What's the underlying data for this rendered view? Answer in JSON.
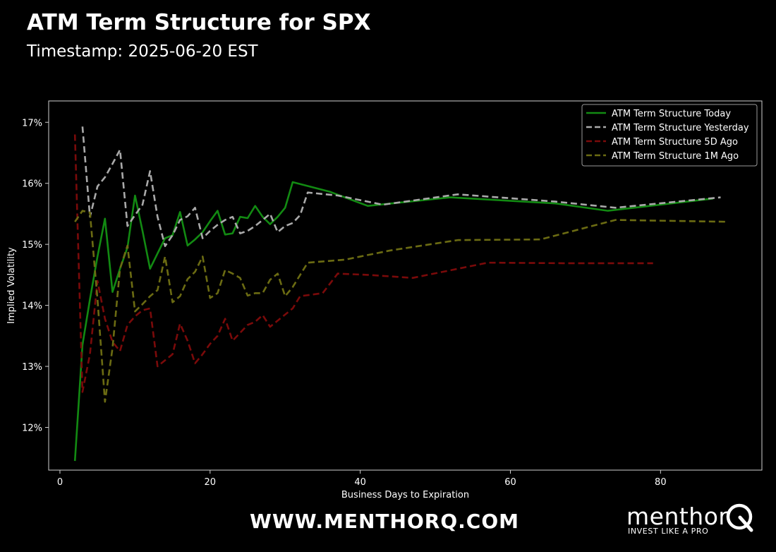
{
  "header": {
    "title": "ATM Term Structure for SPX",
    "subtitle": "Timestamp: 2025-06-20 EST"
  },
  "footer": {
    "url": "WWW.MENTHORQ.COM",
    "logo_word": "menthor",
    "logo_tagline": "INVEST LIKE A PRO"
  },
  "colors": {
    "background": "#000000",
    "today": "#128a12",
    "yesterday": "#a9a9a9",
    "five_day": "#7a0a0a",
    "one_month": "#6b6b12"
  },
  "chart_data": {
    "type": "line",
    "xlabel": "Business Days to Expiration",
    "ylabel": "Implied Volatility",
    "xlim": [
      -1.5,
      93.5
    ],
    "ylim": [
      11.3,
      17.35
    ],
    "xticks": [
      0,
      20,
      40,
      60,
      80
    ],
    "yticks": [
      12,
      13,
      14,
      15,
      16,
      17
    ],
    "ytick_suffix": "%",
    "grid": false,
    "legend_position": "top-right",
    "series": [
      {
        "name": "ATM Term Structure Today",
        "style": "solid",
        "color": "#128a12",
        "x": [
          2,
          3,
          4,
          5,
          6,
          7,
          8,
          9,
          10,
          11,
          12,
          13,
          14,
          15,
          16,
          17,
          18,
          19,
          20,
          21,
          22,
          23,
          24,
          25,
          26,
          27,
          28,
          29,
          30,
          31,
          36,
          41,
          52,
          66,
          73,
          87
        ],
        "y": [
          11.45,
          13.35,
          14.1,
          14.8,
          15.42,
          14.22,
          14.6,
          14.95,
          15.8,
          15.22,
          14.6,
          14.85,
          15.1,
          15.15,
          15.53,
          14.98,
          15.08,
          15.2,
          15.38,
          15.55,
          15.16,
          15.18,
          15.45,
          15.43,
          15.63,
          15.45,
          15.33,
          15.45,
          15.6,
          16.02,
          15.86,
          15.63,
          15.77,
          15.67,
          15.55,
          15.75
        ]
      },
      {
        "name": "ATM Term Structure Yesterday",
        "style": "dashed",
        "color": "#a9a9a9",
        "x": [
          3,
          4,
          5,
          6,
          7,
          8,
          9,
          10,
          11,
          12,
          13,
          14,
          15,
          16,
          17,
          18,
          19,
          20,
          21,
          22,
          23,
          24,
          25,
          26,
          27,
          28,
          29,
          30,
          31,
          32,
          33,
          37,
          43,
          53,
          66,
          74,
          88
        ],
        "y": [
          16.93,
          15.45,
          15.95,
          16.1,
          16.32,
          16.55,
          15.3,
          15.48,
          15.65,
          16.2,
          15.45,
          14.97,
          15.15,
          15.4,
          15.46,
          15.6,
          15.1,
          15.22,
          15.32,
          15.4,
          15.45,
          15.18,
          15.22,
          15.3,
          15.4,
          15.5,
          15.2,
          15.3,
          15.35,
          15.48,
          15.85,
          15.8,
          15.65,
          15.82,
          15.7,
          15.6,
          15.77
        ]
      },
      {
        "name": "ATM Term Structure 5D Ago",
        "style": "dashed",
        "color": "#7a0a0a",
        "x": [
          2,
          3,
          4,
          5,
          6,
          7,
          8,
          9,
          10,
          11,
          12,
          13,
          14,
          15,
          16,
          17,
          18,
          19,
          20,
          21,
          22,
          23,
          24,
          25,
          26,
          27,
          28,
          29,
          30,
          31,
          32,
          35,
          37,
          41,
          47,
          57,
          67,
          79
        ],
        "y": [
          16.8,
          12.58,
          13.2,
          14.4,
          13.78,
          13.4,
          13.25,
          13.68,
          13.82,
          13.92,
          13.95,
          13.0,
          13.1,
          13.2,
          13.7,
          13.42,
          13.05,
          13.2,
          13.37,
          13.5,
          13.78,
          13.42,
          13.55,
          13.68,
          13.73,
          13.84,
          13.65,
          13.75,
          13.85,
          13.95,
          14.15,
          14.2,
          14.52,
          14.5,
          14.45,
          14.7,
          14.69,
          14.69
        ]
      },
      {
        "name": "ATM Term Structure 1M Ago",
        "style": "dashed",
        "color": "#6b6b12",
        "x": [
          2,
          3,
          4,
          5,
          6,
          7,
          8,
          9,
          10,
          11,
          12,
          13,
          14,
          15,
          16,
          17,
          18,
          19,
          20,
          21,
          22,
          23,
          24,
          25,
          26,
          27,
          28,
          29,
          30,
          31,
          32,
          33,
          38,
          44,
          53,
          64,
          74,
          89
        ],
        "y": [
          15.37,
          15.55,
          15.52,
          14.1,
          12.42,
          13.3,
          14.6,
          14.98,
          13.9,
          14.02,
          14.15,
          14.25,
          14.8,
          14.05,
          14.15,
          14.43,
          14.55,
          14.8,
          14.12,
          14.2,
          14.58,
          14.52,
          14.45,
          14.16,
          14.2,
          14.2,
          14.42,
          14.52,
          14.15,
          14.3,
          14.5,
          14.7,
          14.75,
          14.9,
          15.07,
          15.08,
          15.4,
          15.37
        ]
      }
    ]
  }
}
